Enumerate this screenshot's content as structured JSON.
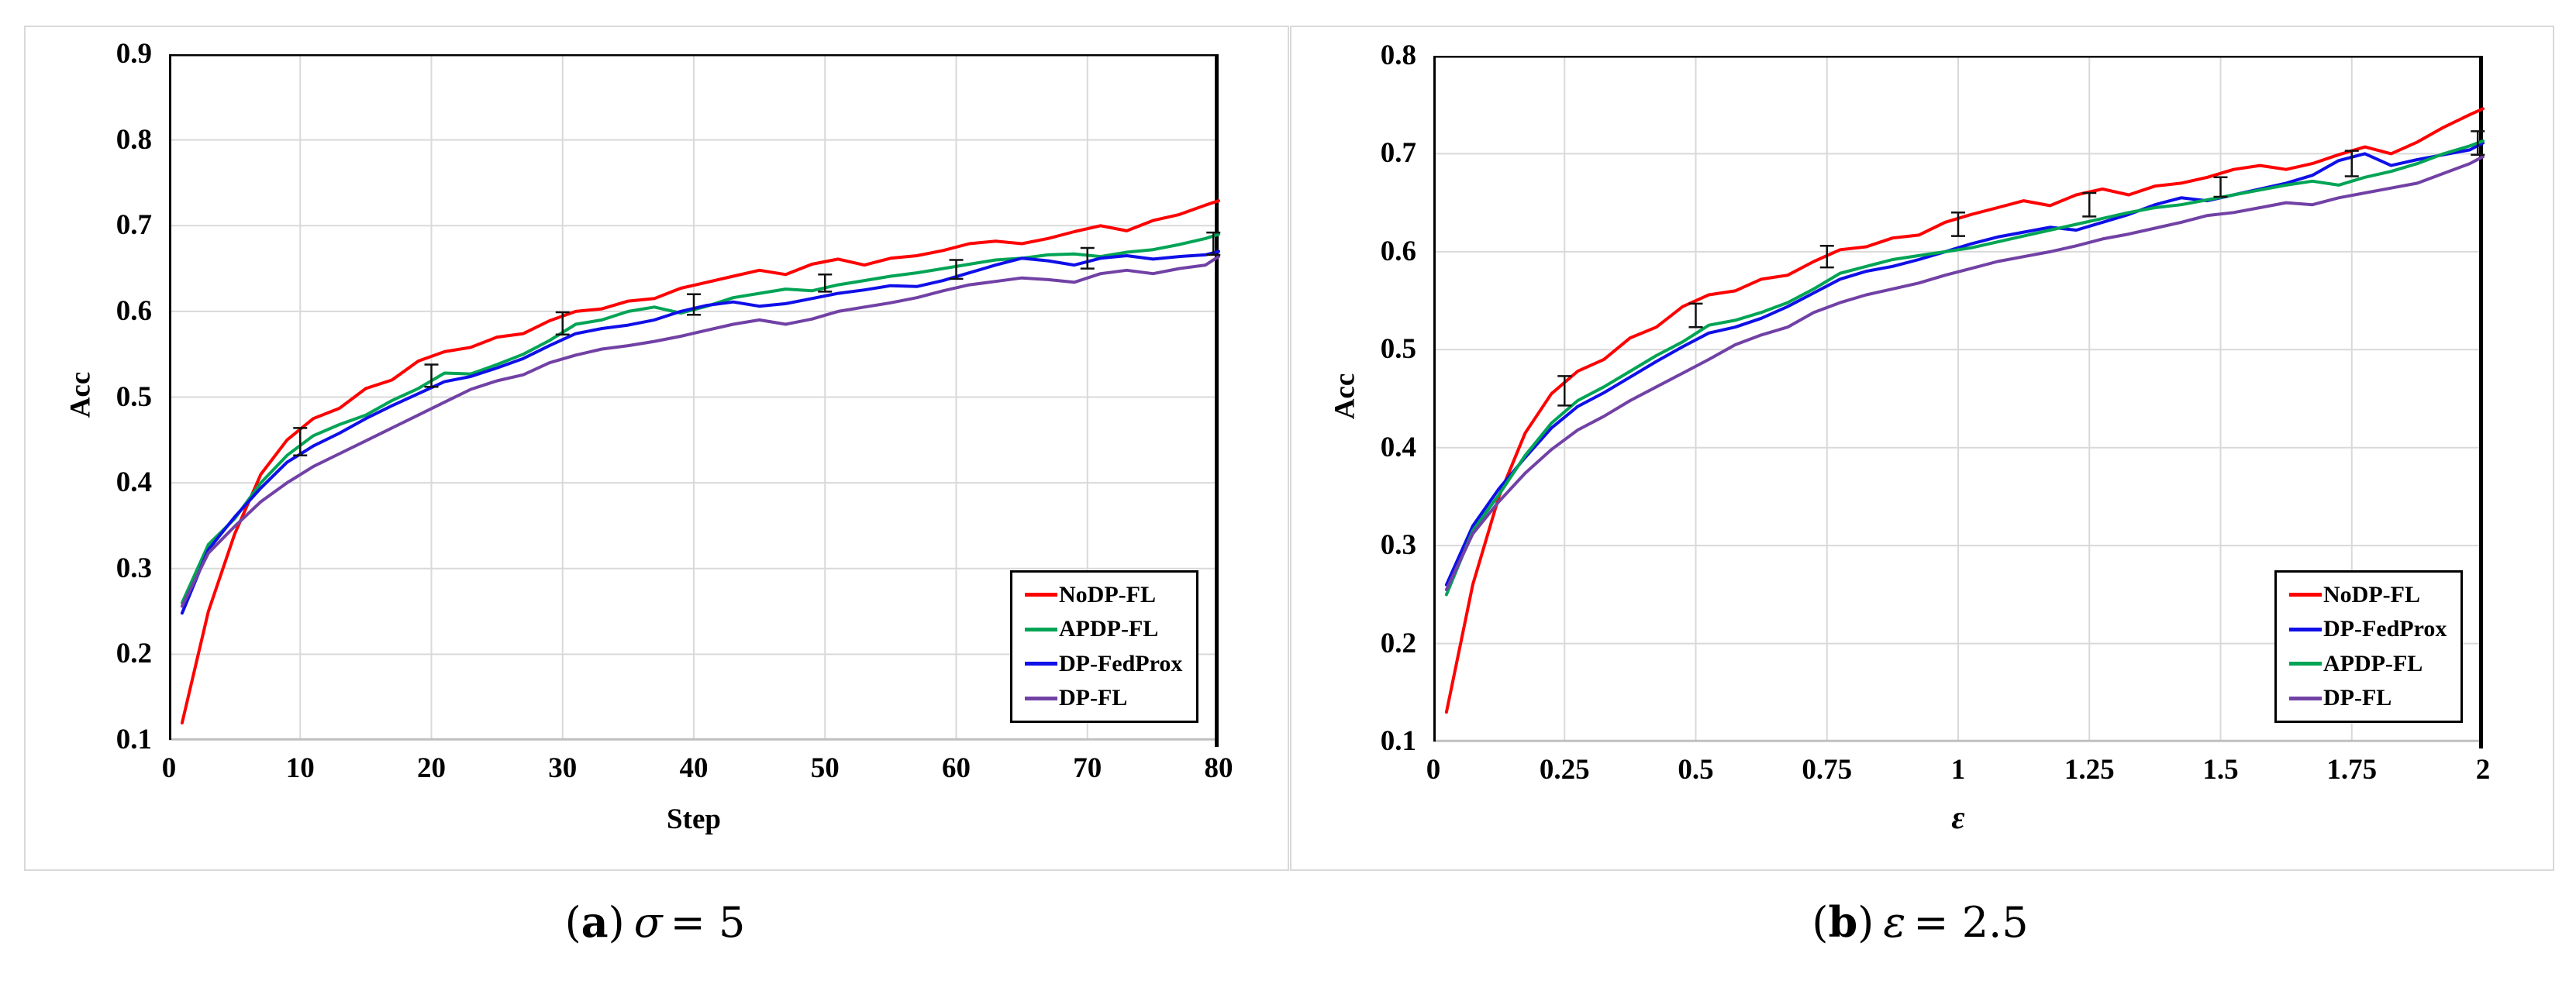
{
  "figure": {
    "background": "#ffffff",
    "panel_border_color": "#d9d9d9",
    "gridline_color": "#d9d9d9",
    "axis_border_color": "#000000",
    "bottom_axis_color": "#bfbfbf",
    "error_bar_color": "#111111"
  },
  "captions": [
    {
      "open": "(",
      "letter": "a",
      "close": ")",
      "symbol": "σ",
      "rest": "= 5"
    },
    {
      "open": "(",
      "letter": "b",
      "close": ")",
      "symbol": "ε",
      "rest": "= 2.5"
    }
  ],
  "chart_data": [
    {
      "type": "line",
      "panel": "a",
      "xlabel": "Step",
      "ylabel": "Acc",
      "xlim": [
        0,
        80
      ],
      "ylim": [
        0.1,
        0.9
      ],
      "grid": true,
      "legend_position": "bottom-right",
      "x_ticks": {
        "values": [
          0,
          10,
          20,
          30,
          40,
          50,
          60,
          70,
          80
        ],
        "labels": [
          "0",
          "10",
          "20",
          "30",
          "40",
          "50",
          "60",
          "70",
          "80"
        ]
      },
      "y_ticks": {
        "values": [
          0.9,
          0.8,
          0.7,
          0.6,
          0.5,
          0.4,
          0.3,
          0.2,
          0.1
        ],
        "labels": [
          "0.9",
          "0.8",
          "0.7",
          "0.6",
          "0.5",
          "0.4",
          "0.3",
          "0.2",
          "0.1"
        ]
      },
      "x": [
        1,
        3,
        5,
        7,
        9,
        11,
        13,
        15,
        17,
        19,
        21,
        23,
        25,
        27,
        29,
        31,
        33,
        35,
        37,
        39,
        41,
        43,
        45,
        47,
        49,
        51,
        53,
        55,
        57,
        59,
        61,
        63,
        65,
        67,
        69,
        71,
        73,
        75,
        77,
        79,
        80
      ],
      "series": [
        {
          "name": "NoDP-FL",
          "color": "#fe0000",
          "values": [
            0.12,
            0.25,
            0.34,
            0.41,
            0.45,
            0.475,
            0.487,
            0.51,
            0.52,
            0.542,
            0.553,
            0.558,
            0.57,
            0.574,
            0.589,
            0.6,
            0.603,
            0.612,
            0.615,
            0.627,
            0.634,
            0.641,
            0.648,
            0.643,
            0.655,
            0.661,
            0.654,
            0.662,
            0.665,
            0.671,
            0.679,
            0.682,
            0.679,
            0.685,
            0.693,
            0.7,
            0.694,
            0.706,
            0.713,
            0.724,
            0.729
          ]
        },
        {
          "name": "APDP-FL",
          "color": "#00a455",
          "values": [
            0.26,
            0.328,
            0.358,
            0.4,
            0.432,
            0.455,
            0.468,
            0.479,
            0.496,
            0.51,
            0.528,
            0.527,
            0.538,
            0.55,
            0.566,
            0.585,
            0.59,
            0.6,
            0.605,
            0.598,
            0.606,
            0.616,
            0.621,
            0.626,
            0.624,
            0.631,
            0.636,
            0.641,
            0.645,
            0.65,
            0.655,
            0.66,
            0.662,
            0.666,
            0.667,
            0.664,
            0.669,
            0.672,
            0.678,
            0.685,
            0.69
          ]
        },
        {
          "name": "DP-FedProx",
          "color": "#0f0fe8",
          "values": [
            0.248,
            0.322,
            0.36,
            0.394,
            0.424,
            0.443,
            0.458,
            0.475,
            0.49,
            0.504,
            0.518,
            0.524,
            0.534,
            0.545,
            0.56,
            0.574,
            0.58,
            0.584,
            0.59,
            0.6,
            0.607,
            0.611,
            0.606,
            0.609,
            0.615,
            0.621,
            0.625,
            0.63,
            0.629,
            0.636,
            0.645,
            0.654,
            0.662,
            0.659,
            0.654,
            0.662,
            0.665,
            0.661,
            0.664,
            0.666,
            0.67
          ]
        },
        {
          "name": "DP-FL",
          "color": "#7141a5",
          "values": [
            0.256,
            0.318,
            0.349,
            0.378,
            0.4,
            0.419,
            0.434,
            0.449,
            0.464,
            0.479,
            0.494,
            0.509,
            0.519,
            0.526,
            0.54,
            0.549,
            0.556,
            0.56,
            0.565,
            0.571,
            0.578,
            0.585,
            0.59,
            0.585,
            0.591,
            0.6,
            0.605,
            0.61,
            0.616,
            0.624,
            0.631,
            0.635,
            0.639,
            0.637,
            0.634,
            0.644,
            0.648,
            0.644,
            0.65,
            0.654,
            0.664
          ]
        }
      ],
      "error_bars": {
        "x": [
          10,
          20,
          30,
          40,
          50,
          60,
          70,
          79.6
        ],
        "y": [
          0.448,
          0.525,
          0.586,
          0.608,
          0.633,
          0.649,
          0.662,
          0.679
        ],
        "h": [
          0.016,
          0.013,
          0.013,
          0.012,
          0.01,
          0.011,
          0.012,
          0.013
        ]
      },
      "legend_items": [
        {
          "label": "NoDP-FL",
          "color": "#fe0000"
        },
        {
          "label": "APDP-FL",
          "color": "#00a455"
        },
        {
          "label": "DP-FedProx",
          "color": "#0f0fe8"
        },
        {
          "label": "DP-FL",
          "color": "#7141a5"
        }
      ]
    },
    {
      "type": "line",
      "panel": "b",
      "xlabel": "ε",
      "ylabel": "Acc",
      "xlim": [
        0,
        2
      ],
      "ylim": [
        0.1,
        0.8
      ],
      "grid": true,
      "legend_position": "bottom-right",
      "x_ticks": {
        "values": [
          0,
          0.25,
          0.5,
          0.75,
          1,
          1.25,
          1.5,
          1.75,
          2
        ],
        "labels": [
          "0",
          "0.25",
          "0.5",
          "0.75",
          "1",
          "1.25",
          "1.5",
          "1.75",
          "2"
        ]
      },
      "y_ticks": {
        "values": [
          0.8,
          0.7,
          0.6,
          0.5,
          0.4,
          0.3,
          0.2,
          0.1
        ],
        "labels": [
          "0.8",
          "0.7",
          "0.6",
          "0.5",
          "0.4",
          "0.3",
          "0.2",
          "0.1"
        ]
      },
      "x": [
        0.025,
        0.075,
        0.125,
        0.175,
        0.225,
        0.275,
        0.325,
        0.375,
        0.425,
        0.475,
        0.525,
        0.575,
        0.625,
        0.675,
        0.725,
        0.775,
        0.825,
        0.875,
        0.925,
        0.975,
        1.025,
        1.075,
        1.125,
        1.175,
        1.225,
        1.275,
        1.325,
        1.375,
        1.425,
        1.475,
        1.525,
        1.575,
        1.625,
        1.675,
        1.725,
        1.775,
        1.825,
        1.875,
        1.925,
        1.975,
        2.0
      ],
      "series": [
        {
          "name": "NoDP-FL",
          "color": "#fe0000",
          "values": [
            0.13,
            0.26,
            0.35,
            0.415,
            0.455,
            0.478,
            0.49,
            0.512,
            0.523,
            0.544,
            0.556,
            0.56,
            0.572,
            0.576,
            0.59,
            0.602,
            0.605,
            0.614,
            0.617,
            0.63,
            0.638,
            0.645,
            0.652,
            0.647,
            0.658,
            0.664,
            0.658,
            0.667,
            0.67,
            0.676,
            0.684,
            0.688,
            0.684,
            0.69,
            0.699,
            0.707,
            0.7,
            0.712,
            0.727,
            0.74,
            0.746
          ]
        },
        {
          "name": "DP-FedProx",
          "color": "#0f0fe8",
          "values": [
            0.26,
            0.32,
            0.358,
            0.39,
            0.42,
            0.442,
            0.456,
            0.472,
            0.488,
            0.503,
            0.517,
            0.523,
            0.532,
            0.544,
            0.558,
            0.572,
            0.58,
            0.585,
            0.592,
            0.6,
            0.608,
            0.615,
            0.62,
            0.625,
            0.622,
            0.63,
            0.638,
            0.648,
            0.655,
            0.652,
            0.658,
            0.664,
            0.67,
            0.678,
            0.693,
            0.7,
            0.688,
            0.694,
            0.699,
            0.704,
            0.711
          ]
        },
        {
          "name": "APDP-FL",
          "color": "#00a455",
          "values": [
            0.25,
            0.315,
            0.352,
            0.392,
            0.425,
            0.448,
            0.462,
            0.478,
            0.494,
            0.508,
            0.525,
            0.53,
            0.538,
            0.548,
            0.562,
            0.578,
            0.585,
            0.592,
            0.596,
            0.6,
            0.604,
            0.61,
            0.616,
            0.622,
            0.628,
            0.634,
            0.64,
            0.645,
            0.648,
            0.653,
            0.658,
            0.663,
            0.668,
            0.672,
            0.668,
            0.676,
            0.682,
            0.69,
            0.7,
            0.708,
            0.713
          ]
        },
        {
          "name": "DP-FL",
          "color": "#7141a5",
          "values": [
            0.255,
            0.312,
            0.345,
            0.374,
            0.398,
            0.418,
            0.432,
            0.448,
            0.462,
            0.476,
            0.49,
            0.505,
            0.515,
            0.523,
            0.538,
            0.548,
            0.556,
            0.562,
            0.568,
            0.576,
            0.583,
            0.59,
            0.595,
            0.6,
            0.606,
            0.613,
            0.618,
            0.624,
            0.63,
            0.637,
            0.64,
            0.645,
            0.65,
            0.648,
            0.655,
            0.66,
            0.665,
            0.67,
            0.68,
            0.69,
            0.697
          ]
        }
      ],
      "error_bars": {
        "x": [
          0.25,
          0.5,
          0.75,
          1.0,
          1.25,
          1.5,
          1.75,
          1.99
        ],
        "y": [
          0.458,
          0.535,
          0.595,
          0.628,
          0.648,
          0.666,
          0.69,
          0.711
        ],
        "h": [
          0.015,
          0.012,
          0.011,
          0.012,
          0.012,
          0.01,
          0.013,
          0.012
        ]
      },
      "legend_items": [
        {
          "label": "NoDP-FL",
          "color": "#fe0000"
        },
        {
          "label": "DP-FedProx",
          "color": "#0f0fe8"
        },
        {
          "label": "APDP-FL",
          "color": "#00a455"
        },
        {
          "label": "DP-FL",
          "color": "#7141a5"
        }
      ]
    }
  ]
}
